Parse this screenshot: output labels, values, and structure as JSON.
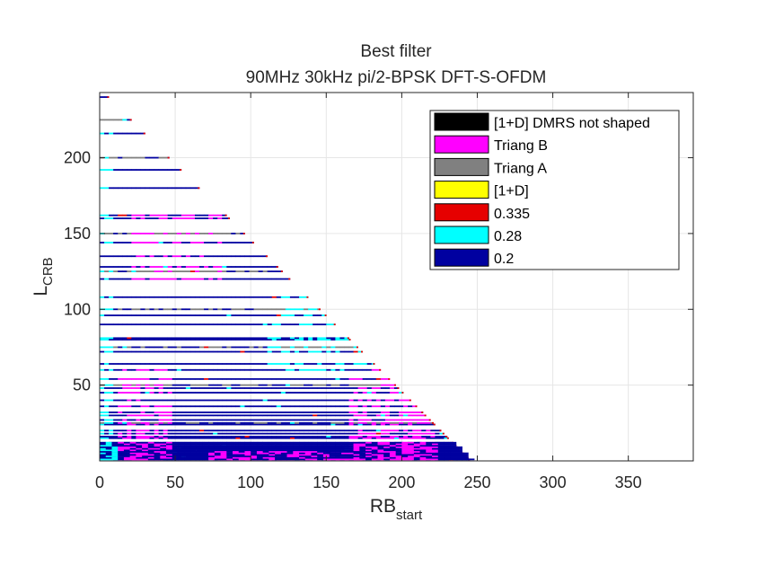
{
  "chart_data": {
    "type": "heatmap",
    "title_line1": "Best filter",
    "title_line2": "90MHz 30kHz pi/2-BPSK DFT-S-OFDM",
    "xlabel_main": "RB",
    "xlabel_sub": "start",
    "ylabel_main": "L",
    "ylabel_sub": "CRB",
    "xlim": [
      0,
      393
    ],
    "ylim": [
      0,
      243
    ],
    "xticks": [
      "0",
      "50",
      "100",
      "150",
      "200",
      "250",
      "300",
      "350"
    ],
    "yticks": [
      "50",
      "100",
      "150",
      "200"
    ],
    "grid": true,
    "legend_position": "top-right",
    "legend": [
      {
        "label": "[1+D] DMRS not shaped",
        "color": "#000000"
      },
      {
        "label": "Triang B",
        "color": "#ff00ff"
      },
      {
        "label": "Triang A",
        "color": "#808080"
      },
      {
        "label": "[1+D]",
        "color": "#ffff00"
      },
      {
        "label": "0.335",
        "color": "#e60000"
      },
      {
        "label": "0.28",
        "color": "#00ffff"
      },
      {
        "label": "0.2",
        "color": "#0000a0"
      }
    ],
    "valid_region": "RB_start + L_CRB <= 245",
    "rows_L": [
      1,
      2,
      3,
      4,
      5,
      6,
      8,
      9,
      10,
      12,
      15,
      16,
      18,
      20,
      24,
      25,
      27,
      30,
      32,
      36,
      40,
      45,
      48,
      50,
      54,
      60,
      64,
      72,
      75,
      80,
      81,
      90,
      96,
      100,
      108,
      120,
      125,
      128,
      135,
      144,
      150,
      160,
      162,
      180,
      192,
      200,
      216,
      225,
      240
    ],
    "dominant_value": "0.2",
    "overlays": [
      {
        "value": "Triang B",
        "L_from": 1,
        "L_to": 60,
        "rb_from": 12,
        "rb_to": 45
      },
      {
        "value": "Triang B",
        "L_from": 1,
        "L_to": 60,
        "rb_from": 165,
        "rb_to": 220
      },
      {
        "value": "Triang B",
        "L_from": 1,
        "L_to": 6,
        "rb_from": 70,
        "rb_to": 200
      },
      {
        "value": "Triang B",
        "L_from": 120,
        "L_to": 165,
        "rb_from": 20,
        "rb_to": 80
      },
      {
        "value": "0.28",
        "L_from": 60,
        "L_to": 110,
        "rb_from": 110,
        "rb_to": 180
      },
      {
        "value": "0.28",
        "L_from": 1,
        "L_to": 243,
        "rb_from": 0,
        "rb_to": 8
      }
    ]
  }
}
